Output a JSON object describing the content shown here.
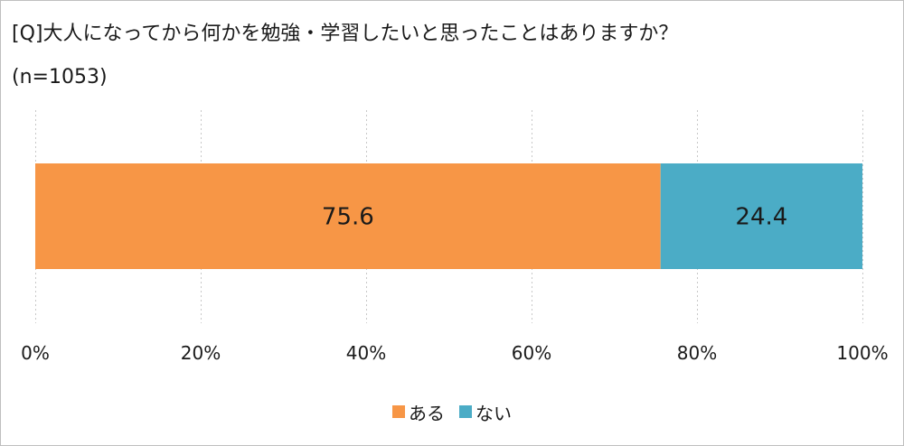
{
  "title": "[Q]大人になってから何かを勉強・学習したいと思ったことはありますか？",
  "subtitle": "(n=1053)",
  "chart_data": {
    "type": "bar",
    "orientation": "horizontal",
    "stacked": true,
    "percent": true,
    "xlim": [
      0,
      100
    ],
    "xticks": [
      0,
      20,
      40,
      60,
      80,
      100
    ],
    "xtick_labels": [
      "0%",
      "20%",
      "40%",
      "60%",
      "80%",
      "100%"
    ],
    "grid": "vertical dotted",
    "legend_position": "bottom",
    "series": [
      {
        "name": "ある",
        "value": 75.6,
        "label": "75.6",
        "color": "#F79646"
      },
      {
        "name": "ない",
        "value": 24.4,
        "label": "24.4",
        "color": "#4BACC6"
      }
    ]
  }
}
